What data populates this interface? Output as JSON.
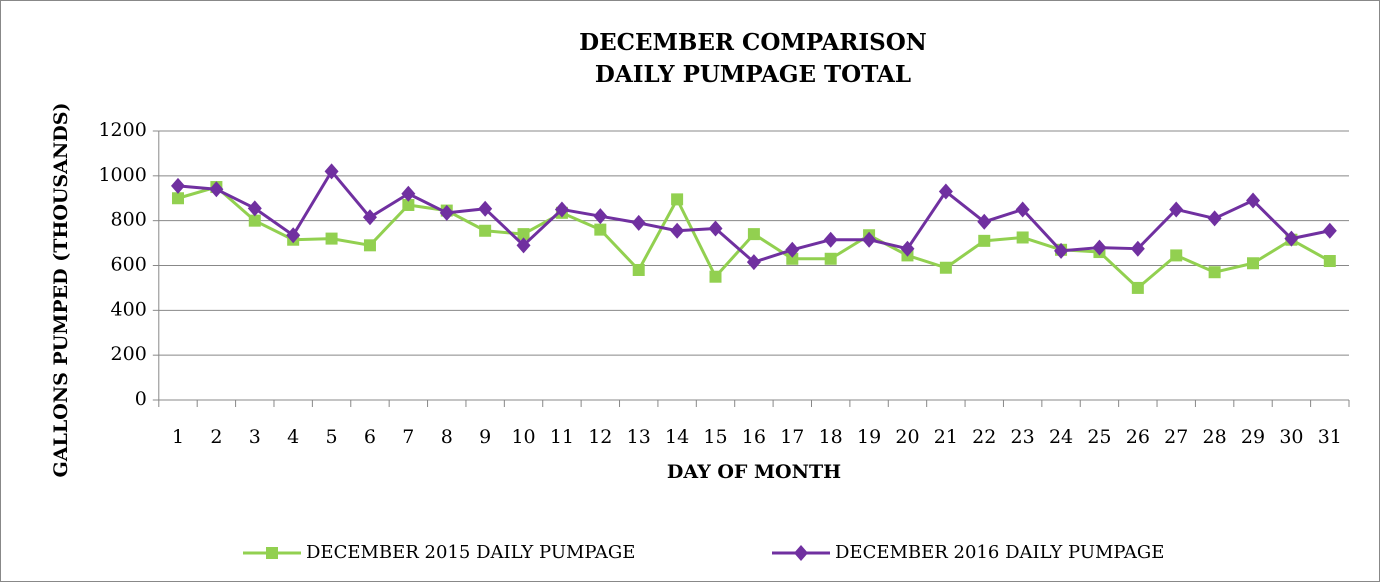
{
  "chart_data": {
    "type": "line",
    "title": "DECEMBER COMPARISON",
    "subtitle": "DAILY PUMPAGE TOTAL",
    "x_label": "DAY OF MONTH",
    "y_label": "GALLONS PUMPED (THOUSANDS)",
    "categories": [
      "1",
      "2",
      "3",
      "4",
      "5",
      "6",
      "7",
      "8",
      "9",
      "10",
      "11",
      "12",
      "13",
      "14",
      "15",
      "16",
      "17",
      "18",
      "19",
      "20",
      "21",
      "22",
      "23",
      "24",
      "25",
      "26",
      "27",
      "28",
      "29",
      "30",
      "31"
    ],
    "series": [
      {
        "name": "DECEMBER 2015 DAILY PUMPAGE",
        "color": "#92d050",
        "marker": "square",
        "values": [
          900,
          950,
          800,
          715,
          720,
          690,
          870,
          845,
          755,
          740,
          835,
          760,
          580,
          895,
          550,
          740,
          630,
          630,
          735,
          645,
          590,
          710,
          725,
          670,
          660,
          500,
          645,
          570,
          610,
          715,
          620
        ]
      },
      {
        "name": "DECEMBER 2016 DAILY PUMPAGE",
        "color": "#7030a0",
        "marker": "diamond",
        "values": [
          955,
          940,
          855,
          735,
          1020,
          815,
          920,
          835,
          853,
          690,
          850,
          820,
          790,
          755,
          765,
          615,
          670,
          715,
          715,
          675,
          930,
          795,
          850,
          665,
          680,
          675,
          850,
          810,
          890,
          720,
          755
        ]
      }
    ],
    "ylim": [
      0,
      1200
    ],
    "yticks": [
      0,
      200,
      400,
      600,
      800,
      1000,
      1200
    ],
    "grid": true,
    "legend": "bottom"
  }
}
